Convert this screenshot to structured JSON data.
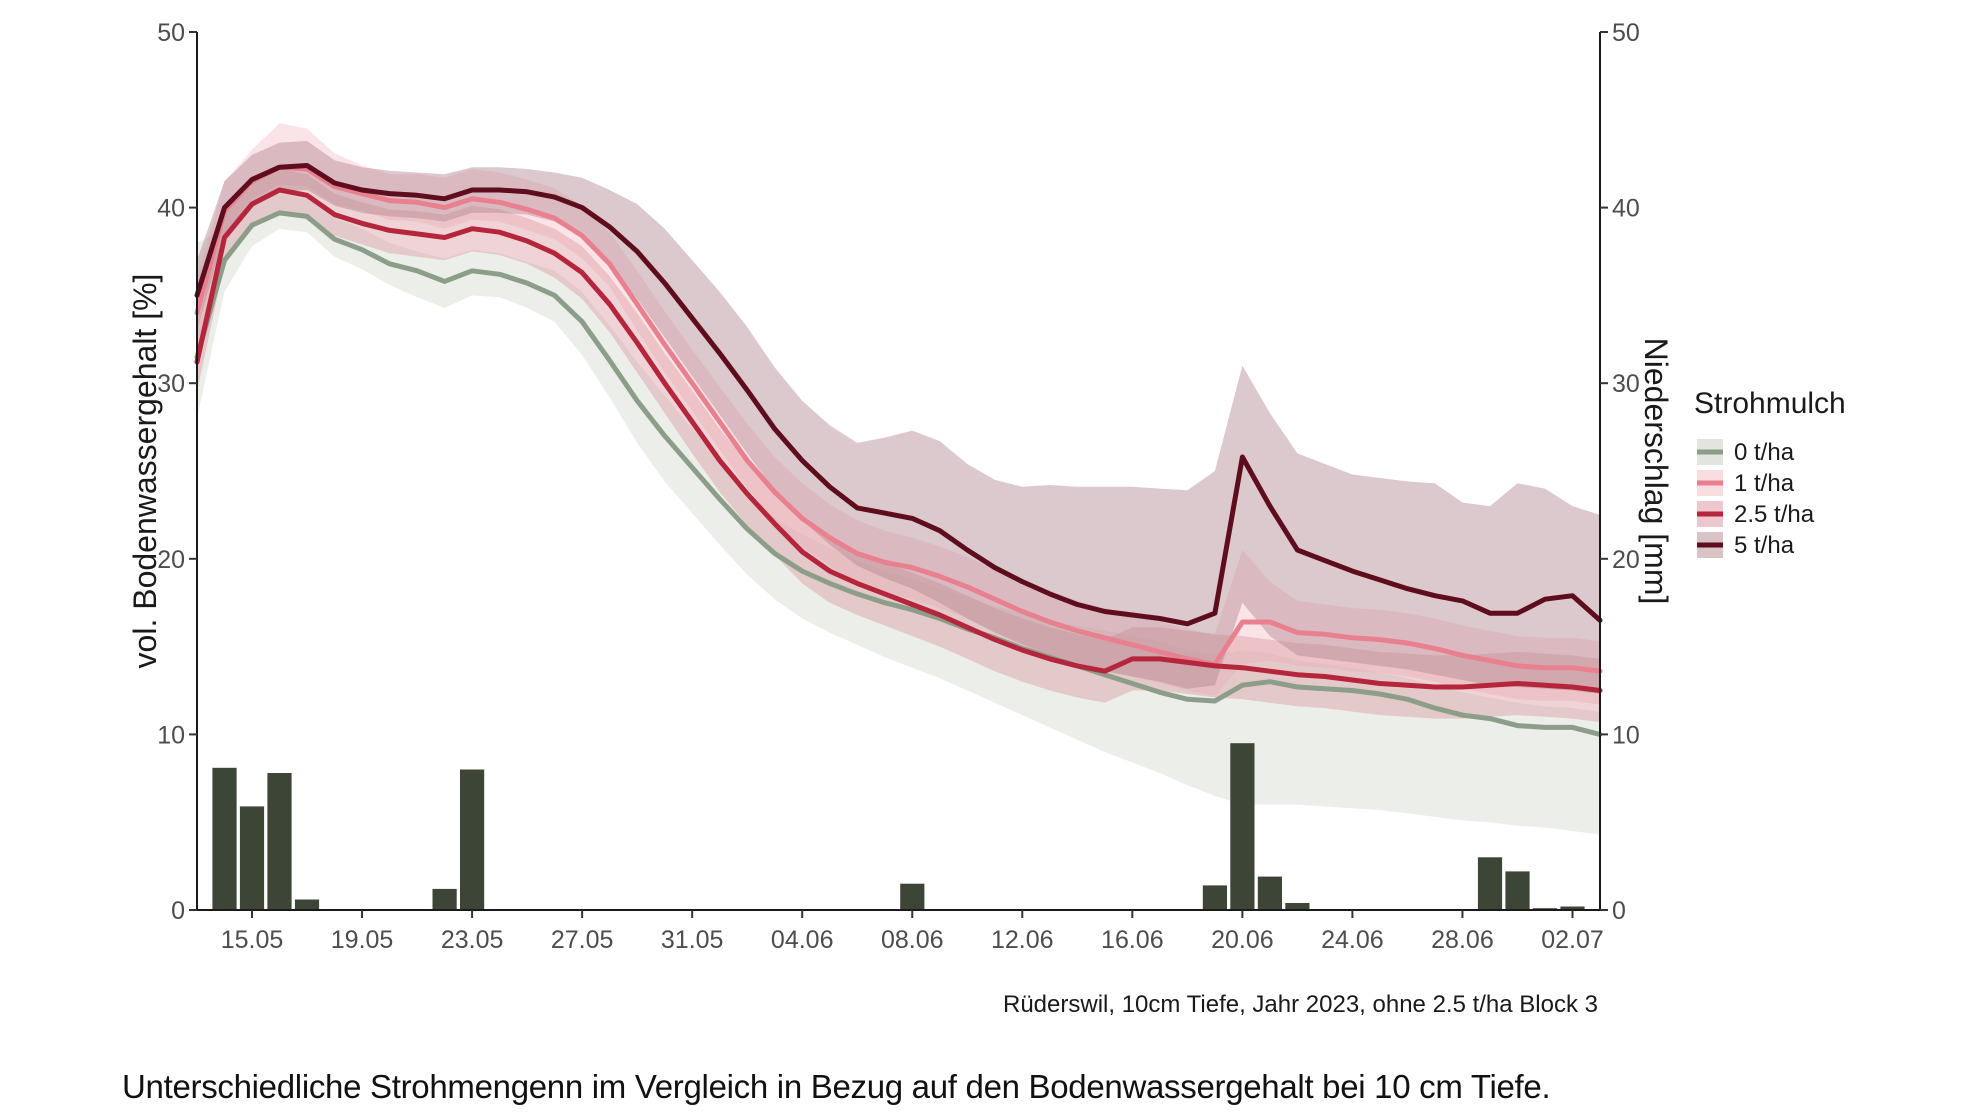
{
  "figure_caption": "Unterschiedliche Strohmengenn im Vergleich in Bezug auf den Bodenwassergehalt bei 10 cm Tiefe.",
  "chart_data": {
    "type": "line",
    "title": "",
    "subtitle": "Rüderswil, 10cm Tiefe, Jahr 2023, ohne 2.5 t/ha Block 3",
    "ylabel": "vol. Bodenwassergehalt [%]",
    "ylabel_right": "Niederschlag [mm]",
    "ylim": [
      0,
      50
    ],
    "ylim_right": [
      0,
      50
    ],
    "y_ticks": [
      "0",
      "10",
      "20",
      "30",
      "40",
      "50"
    ],
    "y_ticks_right": [
      "0",
      "10",
      "20",
      "30",
      "40",
      "50"
    ],
    "x_tick_labels": [
      "15.05",
      "19.05",
      "23.05",
      "27.05",
      "31.05",
      "04.06",
      "08.06",
      "12.06",
      "16.06",
      "20.06",
      "24.06",
      "28.06",
      "02.07"
    ],
    "x_tick_days": [
      2,
      6,
      10,
      14,
      18,
      22,
      26,
      30,
      34,
      38,
      42,
      46,
      50
    ],
    "xlim_days": [
      0,
      51
    ],
    "x_note": "x values are days after 13.05.2023",
    "grid": false,
    "legend": {
      "title": "Strohmulch",
      "position": "right",
      "entries": [
        "0 t/ha",
        "1 t/ha",
        "2.5 t/ha",
        "5 t/ha"
      ]
    },
    "series": [
      {
        "name": "0 t/ha",
        "color": "#8c9e89",
        "band_color": "#c3c9bf",
        "x": [
          0,
          1,
          2,
          3,
          4,
          5,
          6,
          7,
          8,
          9,
          10,
          11,
          12,
          13,
          14,
          15,
          16,
          17,
          18,
          19,
          20,
          21,
          22,
          23,
          24,
          25,
          26,
          27,
          28,
          29,
          30,
          31,
          32,
          33,
          34,
          35,
          36,
          37,
          38,
          39,
          40,
          41,
          42,
          43,
          44,
          45,
          46,
          47,
          48,
          49,
          50,
          51
        ],
        "values": [
          31.5,
          37.0,
          39.0,
          39.7,
          39.5,
          38.2,
          37.6,
          36.8,
          36.4,
          35.8,
          36.4,
          36.2,
          35.7,
          35.0,
          33.5,
          31.3,
          29.0,
          27.0,
          25.2,
          23.4,
          21.7,
          20.3,
          19.3,
          18.6,
          18.0,
          17.5,
          17.1,
          16.6,
          16.0,
          15.5,
          14.9,
          14.4,
          13.9,
          13.4,
          12.9,
          12.4,
          12.0,
          11.9,
          12.8,
          13.0,
          12.7,
          12.6,
          12.5,
          12.3,
          12.0,
          11.5,
          11.1,
          10.9,
          10.5,
          10.4,
          10.4,
          10.0
        ],
        "lower": [
          28.0,
          35.2,
          37.8,
          38.8,
          38.6,
          37.2,
          36.5,
          35.6,
          34.9,
          34.3,
          35.0,
          34.9,
          34.3,
          33.5,
          31.6,
          29.2,
          26.6,
          24.4,
          22.6,
          20.8,
          19.1,
          17.7,
          16.6,
          15.8,
          15.1,
          14.4,
          13.8,
          13.2,
          12.5,
          11.8,
          11.1,
          10.4,
          9.7,
          9.0,
          8.4,
          7.8,
          7.1,
          6.5,
          6.0,
          6.0,
          6.0,
          5.9,
          5.8,
          5.7,
          5.5,
          5.3,
          5.1,
          5.0,
          4.8,
          4.7,
          4.5,
          4.3
        ],
        "upper": [
          38.0,
          38.8,
          40.3,
          40.8,
          40.5,
          39.4,
          38.8,
          38.0,
          37.5,
          37.1,
          37.6,
          37.4,
          36.9,
          36.4,
          35.2,
          33.3,
          31.2,
          29.3,
          27.4,
          25.6,
          23.8,
          22.3,
          21.4,
          20.6,
          19.9,
          19.3,
          18.8,
          18.3,
          17.8,
          17.3,
          16.9,
          16.5,
          16.2,
          15.9,
          15.6,
          15.3,
          14.8,
          14.5,
          14.8,
          14.6,
          14.2,
          14.0,
          13.8,
          13.5,
          13.2,
          12.8,
          12.4,
          12.1,
          11.8,
          11.6,
          11.5,
          11.3
        ]
      },
      {
        "name": "1 t/ha",
        "color": "#e8808f",
        "band_color": "#f5bcc4",
        "x": [
          0,
          1,
          2,
          3,
          4,
          5,
          6,
          7,
          8,
          9,
          10,
          11,
          12,
          13,
          14,
          15,
          16,
          17,
          18,
          19,
          20,
          21,
          22,
          23,
          24,
          25,
          26,
          27,
          28,
          29,
          30,
          31,
          32,
          33,
          34,
          35,
          36,
          37,
          38,
          39,
          40,
          41,
          42,
          43,
          44,
          45,
          46,
          47,
          48,
          49,
          50,
          51
        ],
        "values": [
          34.0,
          39.8,
          41.5,
          42.3,
          42.2,
          41.2,
          40.8,
          40.4,
          40.3,
          40.0,
          40.5,
          40.3,
          39.9,
          39.4,
          38.4,
          36.8,
          34.5,
          32.2,
          30.0,
          27.8,
          25.6,
          23.8,
          22.3,
          21.2,
          20.3,
          19.8,
          19.5,
          19.0,
          18.4,
          17.7,
          17.0,
          16.4,
          15.9,
          15.5,
          15.1,
          14.7,
          14.3,
          14.0,
          16.4,
          16.4,
          15.8,
          15.7,
          15.5,
          15.4,
          15.2,
          14.9,
          14.5,
          14.2,
          13.9,
          13.8,
          13.8,
          13.6
        ],
        "lower": [
          31.0,
          38.5,
          40.5,
          41.3,
          41.2,
          40.2,
          39.8,
          39.3,
          39.2,
          38.8,
          39.3,
          39.2,
          38.7,
          38.2,
          37.1,
          35.5,
          33.0,
          30.6,
          28.4,
          26.2,
          24.0,
          22.2,
          20.7,
          19.6,
          18.7,
          18.1,
          17.7,
          17.2,
          16.6,
          15.9,
          15.2,
          14.6,
          14.1,
          13.7,
          13.3,
          12.9,
          12.5,
          12.2,
          14.0,
          14.2,
          13.9,
          13.8,
          13.6,
          13.5,
          13.3,
          13.0,
          12.6,
          12.3,
          12.0,
          11.9,
          11.9,
          11.7
        ],
        "upper": [
          36.0,
          41.5,
          43.3,
          44.8,
          44.5,
          43.1,
          42.4,
          41.9,
          41.9,
          41.7,
          42.2,
          42.0,
          41.6,
          41.1,
          40.1,
          38.6,
          36.4,
          34.1,
          31.9,
          29.8,
          27.7,
          25.8,
          24.3,
          23.1,
          22.2,
          21.6,
          21.2,
          20.7,
          20.1,
          19.4,
          18.7,
          18.1,
          17.6,
          17.2,
          16.8,
          16.4,
          16.0,
          15.7,
          20.5,
          18.7,
          17.6,
          17.4,
          17.2,
          17.1,
          16.9,
          16.6,
          16.2,
          15.9,
          15.6,
          15.5,
          15.5,
          15.3
        ]
      },
      {
        "name": "2.5 t/ha",
        "color": "#b5253b",
        "band_color": "#d9909c",
        "x": [
          0,
          1,
          2,
          3,
          4,
          5,
          6,
          7,
          8,
          9,
          10,
          11,
          12,
          13,
          14,
          15,
          16,
          17,
          18,
          19,
          20,
          21,
          22,
          23,
          24,
          25,
          26,
          27,
          28,
          29,
          30,
          31,
          32,
          33,
          34,
          35,
          36,
          37,
          38,
          39,
          40,
          41,
          42,
          43,
          44,
          45,
          46,
          47,
          48,
          49,
          50,
          51
        ],
        "values": [
          31.2,
          38.3,
          40.2,
          41.0,
          40.7,
          39.6,
          39.1,
          38.7,
          38.5,
          38.3,
          38.8,
          38.6,
          38.1,
          37.4,
          36.3,
          34.5,
          32.3,
          30.0,
          27.8,
          25.6,
          23.7,
          22.0,
          20.4,
          19.3,
          18.6,
          18.0,
          17.4,
          16.8,
          16.1,
          15.4,
          14.8,
          14.3,
          13.9,
          13.6,
          14.3,
          14.3,
          14.1,
          13.9,
          13.8,
          13.6,
          13.4,
          13.3,
          13.1,
          12.9,
          12.8,
          12.7,
          12.7,
          12.8,
          12.9,
          12.8,
          12.7,
          12.5
        ],
        "lower": [
          29.5,
          36.8,
          38.9,
          39.8,
          39.5,
          38.4,
          37.9,
          37.4,
          37.2,
          37.0,
          37.5,
          37.3,
          36.8,
          36.0,
          34.8,
          32.9,
          30.6,
          28.3,
          26.0,
          23.8,
          21.9,
          20.2,
          18.6,
          17.5,
          16.8,
          16.2,
          15.6,
          15.0,
          14.3,
          13.6,
          13.0,
          12.5,
          12.1,
          11.8,
          12.5,
          12.5,
          12.3,
          12.1,
          12.0,
          11.8,
          11.6,
          11.5,
          11.3,
          11.1,
          11.0,
          10.9,
          10.9,
          11.0,
          11.1,
          11.0,
          10.9,
          10.7
        ],
        "upper": [
          33.0,
          39.8,
          41.5,
          42.2,
          41.9,
          40.8,
          40.3,
          39.9,
          39.8,
          39.6,
          40.1,
          39.9,
          39.4,
          38.8,
          37.8,
          36.1,
          34.0,
          31.7,
          29.6,
          27.4,
          25.5,
          23.8,
          22.2,
          21.1,
          20.4,
          19.8,
          19.2,
          18.6,
          17.9,
          17.2,
          16.6,
          16.1,
          15.7,
          15.4,
          16.1,
          16.1,
          15.9,
          15.7,
          15.6,
          15.4,
          15.2,
          15.1,
          14.9,
          14.7,
          14.6,
          14.5,
          14.5,
          14.6,
          14.7,
          14.6,
          14.5,
          14.3
        ]
      },
      {
        "name": "5 t/ha",
        "color": "#5e0d1e",
        "band_color": "#b28890",
        "x": [
          0,
          1,
          2,
          3,
          4,
          5,
          6,
          7,
          8,
          9,
          10,
          11,
          12,
          13,
          14,
          15,
          16,
          17,
          18,
          19,
          20,
          21,
          22,
          23,
          24,
          25,
          26,
          27,
          28,
          29,
          30,
          31,
          32,
          33,
          34,
          35,
          36,
          37,
          38,
          39,
          40,
          41,
          42,
          43,
          44,
          45,
          46,
          47,
          48,
          49,
          50,
          51
        ],
        "values": [
          35.0,
          40.0,
          41.6,
          42.3,
          42.4,
          41.4,
          41.0,
          40.8,
          40.7,
          40.5,
          41.0,
          41.0,
          40.9,
          40.6,
          40.0,
          38.9,
          37.5,
          35.7,
          33.7,
          31.7,
          29.6,
          27.4,
          25.6,
          24.1,
          22.9,
          22.6,
          22.3,
          21.6,
          20.5,
          19.5,
          18.7,
          18.0,
          17.4,
          17.0,
          16.8,
          16.6,
          16.3,
          16.9,
          25.8,
          23.0,
          20.5,
          19.9,
          19.3,
          18.8,
          18.3,
          17.9,
          17.6,
          16.9,
          16.9,
          17.7,
          17.9,
          16.5
        ],
        "lower": [
          33.0,
          38.5,
          40.2,
          40.9,
          41.0,
          40.1,
          39.7,
          39.5,
          39.4,
          39.2,
          39.7,
          39.7,
          39.6,
          39.2,
          38.3,
          36.8,
          34.8,
          32.6,
          30.4,
          28.2,
          26.0,
          23.9,
          22.2,
          20.8,
          19.6,
          18.9,
          18.3,
          17.5,
          16.6,
          15.8,
          15.1,
          14.5,
          14.0,
          13.6,
          13.3,
          13.0,
          12.6,
          12.8,
          17.5,
          15.6,
          14.5,
          14.3,
          14.1,
          13.9,
          13.7,
          13.4,
          13.1,
          12.8,
          12.7,
          12.6,
          12.5,
          12.3
        ],
        "upper": [
          37.0,
          41.5,
          43.0,
          43.7,
          43.8,
          42.7,
          42.3,
          42.1,
          42.0,
          41.9,
          42.3,
          42.3,
          42.2,
          42.0,
          41.7,
          41.0,
          40.2,
          38.8,
          37.0,
          35.2,
          33.2,
          30.9,
          29.0,
          27.6,
          26.6,
          26.9,
          27.3,
          26.7,
          25.4,
          24.5,
          24.1,
          24.2,
          24.1,
          24.1,
          24.1,
          24.0,
          23.9,
          25.0,
          31.0,
          28.3,
          26.0,
          25.4,
          24.8,
          24.6,
          24.4,
          24.3,
          23.2,
          23.0,
          24.3,
          24.0,
          23.0,
          22.5
        ]
      }
    ],
    "precipitation": {
      "name": "Niederschlag",
      "color": "#3c4536",
      "x": [
        1,
        2,
        3,
        4,
        9,
        10,
        26,
        37,
        38,
        39,
        40,
        47,
        48,
        49,
        50
      ],
      "values": [
        8.1,
        5.9,
        7.8,
        0.6,
        1.2,
        8.0,
        1.5,
        1.4,
        9.5,
        1.9,
        0.4,
        3.0,
        2.2,
        0.1,
        0.2
      ]
    }
  }
}
